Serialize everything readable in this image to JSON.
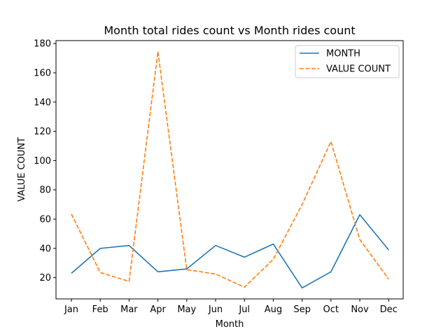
{
  "chart_data": {
    "type": "line",
    "title": "Month total rides count vs Month rides count",
    "xlabel": "Month",
    "ylabel": "VALUE COUNT",
    "categories": [
      "Jan",
      "Feb",
      "Mar",
      "Apr",
      "May",
      "Jun",
      "Jul",
      "Aug",
      "Sep",
      "Oct",
      "Nov",
      "Dec"
    ],
    "yticks": [
      20,
      40,
      60,
      80,
      100,
      120,
      140,
      160,
      180
    ],
    "ylim": [
      5.5,
      182
    ],
    "grid": false,
    "legend_position": "top-right",
    "series": [
      {
        "name": "MONTH",
        "color": "#1f77b4",
        "style": "solid",
        "values": [
          23,
          40,
          42,
          24,
          26,
          42,
          34,
          43,
          13,
          24,
          63,
          39
        ]
      },
      {
        "name": "VALUE COUNT",
        "color": "#ff7f0e",
        "style": "dashed",
        "values": [
          63.5,
          23.5,
          17.5,
          174.5,
          25.5,
          22.5,
          13.5,
          32.5,
          70,
          113,
          46,
          19
        ]
      }
    ]
  }
}
